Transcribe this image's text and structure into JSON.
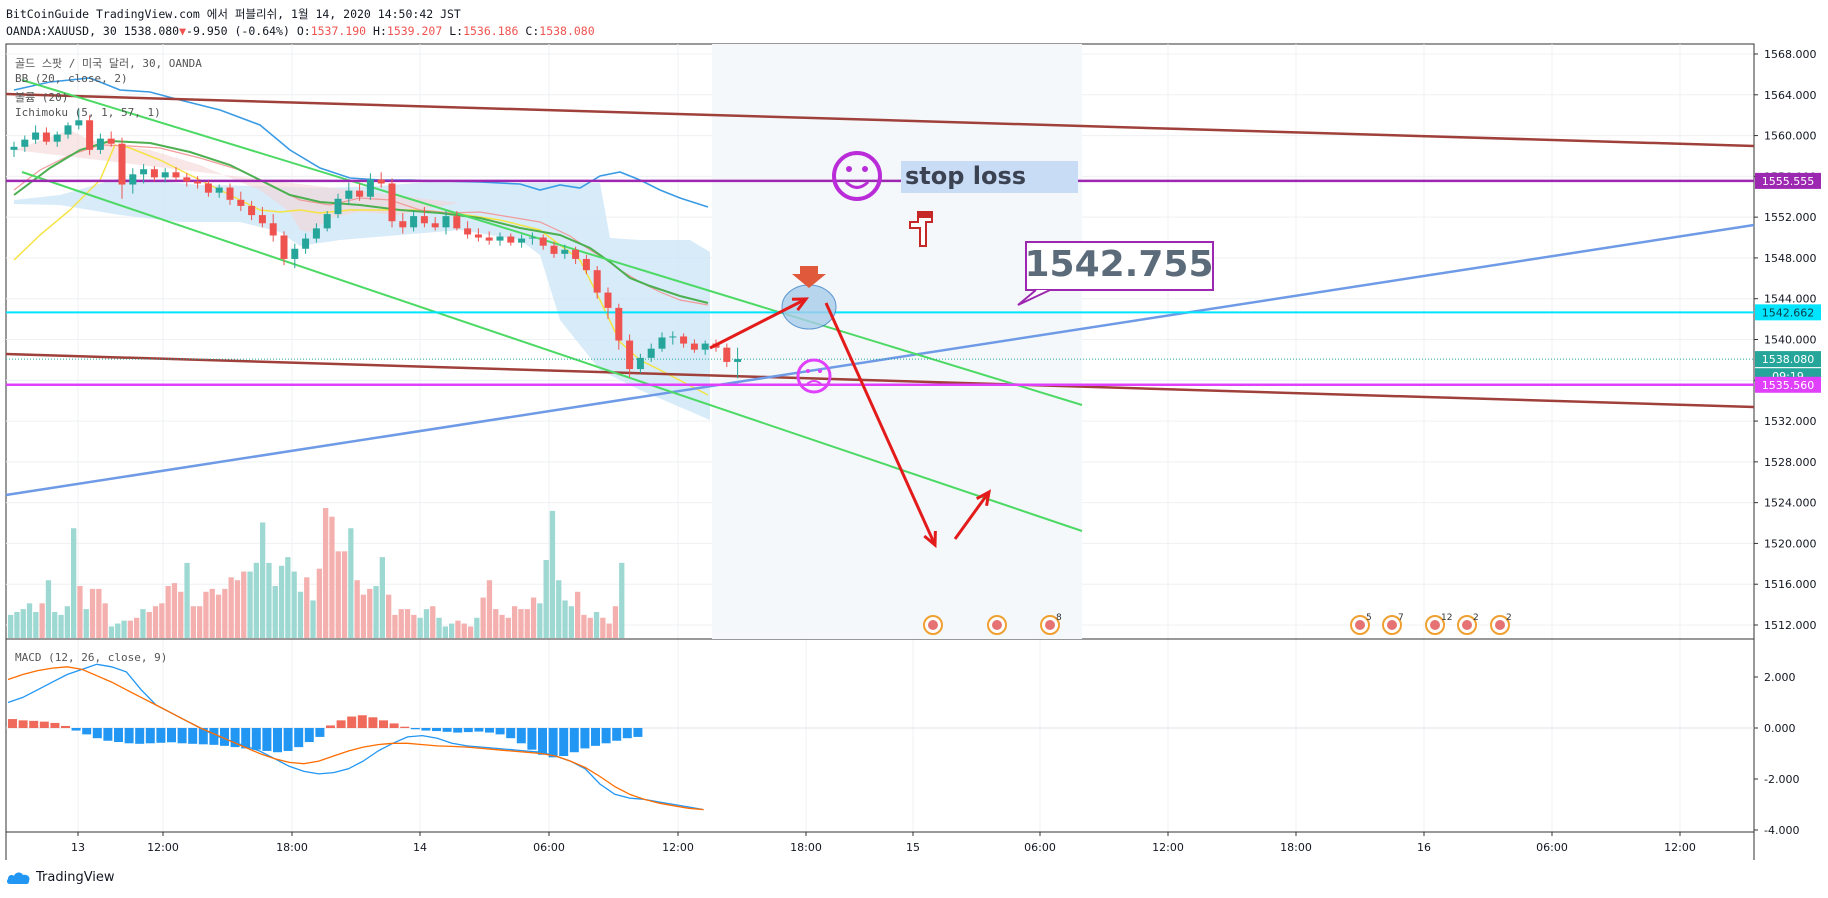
{
  "header": {
    "line1": "BitCoinGuide TradingView.com 에서 퍼블리쉬, 1월 14, 2020 14:50:42 JST",
    "symbol": "OANDA:XAUUSD, 30",
    "price": "1538.080",
    "change": "-9.950 (-0.64%)",
    "o_label": "O:",
    "o": "1537.190",
    "h_label": "H:",
    "h": "1539.207",
    "l_label": "L:",
    "l": "1536.186",
    "c_label": "C:",
    "c": "1538.080"
  },
  "legend": {
    "title": "골드 스팟 / 미국 달러, 30, OANDA",
    "bb": "BB (20, close, 2)",
    "vol": "볼륨 (20)",
    "ichimoku": "Ichimoku (5, 1, 57, 1)",
    "macd": "MACD (12, 26, close, 9)"
  },
  "annotations": {
    "stop_loss": "stop loss",
    "target_price": "1542.755"
  },
  "price_axis": {
    "ticks": [
      "1568.000",
      "1564.000",
      "1560.000",
      "1556.000",
      "1552.000",
      "1548.000",
      "1544.000",
      "1540.000",
      "1536.000",
      "1532.000",
      "1528.000",
      "1524.000",
      "1520.000",
      "1516.000",
      "1512.000"
    ],
    "tags": [
      {
        "text": "1555.555",
        "color": "#9c27b0",
        "value": 1555.555
      },
      {
        "text": "1542.662",
        "color": "#00e5ff",
        "value": 1542.662
      },
      {
        "text": "1538.080",
        "color": "#26a69a",
        "value": 1538.08
      },
      {
        "text": "09:19",
        "color": "#26a69a",
        "value": 1536.4
      },
      {
        "text": "1535.560",
        "color": "#e040fb",
        "value": 1535.56
      }
    ]
  },
  "macd_axis": {
    "ticks": [
      "2.000",
      "0.000",
      "-2.000",
      "-4.000"
    ]
  },
  "time_axis": {
    "ticks": [
      "13",
      "12:00",
      "18:00",
      "14",
      "06:00",
      "12:00",
      "18:00",
      "15",
      "06:00",
      "12:00",
      "18:00",
      "16",
      "06:00",
      "12:00"
    ]
  },
  "event_badges": [
    "",
    "",
    "8",
    "5",
    "7",
    "12",
    "2",
    "2"
  ],
  "footer": {
    "brand": "TradingView"
  },
  "colors": {
    "up": "#26a69a",
    "down": "#ef5350",
    "stop_loss_line": "#9c27b0",
    "entry_line": "#00e5ff",
    "support_line": "#e040fb",
    "channel": "#4cd964",
    "trend_brown": "#a0403a",
    "trend_blue": "#6f9ae6"
  },
  "chart_data": {
    "type": "candlestick",
    "ylim": [
      1510,
      1568
    ],
    "candles": [
      {
        "o": 1558.6,
        "h": 1559.4,
        "l": 1557.9,
        "c": 1558.9
      },
      {
        "o": 1558.9,
        "h": 1560.0,
        "l": 1558.4,
        "c": 1559.6
      },
      {
        "o": 1559.6,
        "h": 1561.0,
        "l": 1559.2,
        "c": 1560.3
      },
      {
        "o": 1560.3,
        "h": 1560.8,
        "l": 1559.1,
        "c": 1559.4
      },
      {
        "o": 1559.4,
        "h": 1560.4,
        "l": 1558.9,
        "c": 1560.1
      },
      {
        "o": 1560.1,
        "h": 1561.3,
        "l": 1559.7,
        "c": 1561.0
      },
      {
        "o": 1561.0,
        "h": 1562.6,
        "l": 1560.6,
        "c": 1561.5
      },
      {
        "o": 1561.5,
        "h": 1562.0,
        "l": 1558.1,
        "c": 1558.6
      },
      {
        "o": 1558.6,
        "h": 1560.2,
        "l": 1558.2,
        "c": 1559.7
      },
      {
        "o": 1559.7,
        "h": 1560.4,
        "l": 1558.9,
        "c": 1559.2
      },
      {
        "o": 1559.2,
        "h": 1559.8,
        "l": 1553.8,
        "c": 1555.2
      },
      {
        "o": 1555.2,
        "h": 1556.8,
        "l": 1554.3,
        "c": 1556.2
      },
      {
        "o": 1556.2,
        "h": 1557.2,
        "l": 1555.3,
        "c": 1556.7
      },
      {
        "o": 1556.7,
        "h": 1557.0,
        "l": 1555.5,
        "c": 1555.9
      },
      {
        "o": 1555.9,
        "h": 1556.8,
        "l": 1555.4,
        "c": 1556.4
      },
      {
        "o": 1556.4,
        "h": 1556.9,
        "l": 1555.6,
        "c": 1555.9
      },
      {
        "o": 1555.9,
        "h": 1556.3,
        "l": 1555.0,
        "c": 1555.5
      },
      {
        "o": 1555.5,
        "h": 1556.0,
        "l": 1554.8,
        "c": 1555.3
      },
      {
        "o": 1555.3,
        "h": 1555.6,
        "l": 1554.0,
        "c": 1554.4
      },
      {
        "o": 1554.4,
        "h": 1555.2,
        "l": 1553.9,
        "c": 1554.9
      },
      {
        "o": 1554.9,
        "h": 1555.3,
        "l": 1553.2,
        "c": 1553.7
      },
      {
        "o": 1553.7,
        "h": 1554.5,
        "l": 1552.6,
        "c": 1553.1
      },
      {
        "o": 1553.1,
        "h": 1553.6,
        "l": 1551.7,
        "c": 1552.2
      },
      {
        "o": 1552.2,
        "h": 1553.0,
        "l": 1551.0,
        "c": 1551.4
      },
      {
        "o": 1551.4,
        "h": 1552.3,
        "l": 1549.6,
        "c": 1550.2
      },
      {
        "o": 1550.2,
        "h": 1550.6,
        "l": 1547.3,
        "c": 1547.9
      },
      {
        "o": 1547.9,
        "h": 1549.4,
        "l": 1547.0,
        "c": 1548.9
      },
      {
        "o": 1548.9,
        "h": 1550.4,
        "l": 1548.4,
        "c": 1549.9
      },
      {
        "o": 1549.9,
        "h": 1551.4,
        "l": 1549.5,
        "c": 1550.9
      },
      {
        "o": 1550.9,
        "h": 1552.6,
        "l": 1550.6,
        "c": 1552.3
      },
      {
        "o": 1552.3,
        "h": 1554.3,
        "l": 1551.9,
        "c": 1553.8
      },
      {
        "o": 1553.8,
        "h": 1555.4,
        "l": 1553.2,
        "c": 1554.6
      },
      {
        "o": 1554.6,
        "h": 1555.3,
        "l": 1553.6,
        "c": 1554.0
      },
      {
        "o": 1554.0,
        "h": 1556.3,
        "l": 1553.7,
        "c": 1555.7
      },
      {
        "o": 1555.7,
        "h": 1556.4,
        "l": 1554.9,
        "c": 1555.3
      },
      {
        "o": 1555.3,
        "h": 1555.8,
        "l": 1551.0,
        "c": 1551.6
      },
      {
        "o": 1551.6,
        "h": 1552.4,
        "l": 1550.4,
        "c": 1551.0
      },
      {
        "o": 1551.0,
        "h": 1552.7,
        "l": 1550.6,
        "c": 1552.1
      },
      {
        "o": 1552.1,
        "h": 1553.0,
        "l": 1551.0,
        "c": 1551.4
      },
      {
        "o": 1551.4,
        "h": 1552.0,
        "l": 1550.7,
        "c": 1551.0
      },
      {
        "o": 1551.0,
        "h": 1552.6,
        "l": 1550.3,
        "c": 1552.1
      },
      {
        "o": 1552.1,
        "h": 1552.6,
        "l": 1550.7,
        "c": 1550.9
      },
      {
        "o": 1550.9,
        "h": 1551.6,
        "l": 1549.9,
        "c": 1550.3
      },
      {
        "o": 1550.3,
        "h": 1550.9,
        "l": 1549.6,
        "c": 1550.0
      },
      {
        "o": 1550.0,
        "h": 1550.6,
        "l": 1549.3,
        "c": 1549.7
      },
      {
        "o": 1549.7,
        "h": 1550.5,
        "l": 1549.2,
        "c": 1550.1
      },
      {
        "o": 1550.1,
        "h": 1550.4,
        "l": 1549.2,
        "c": 1549.5
      },
      {
        "o": 1549.5,
        "h": 1550.3,
        "l": 1549.0,
        "c": 1549.9
      },
      {
        "o": 1549.9,
        "h": 1550.5,
        "l": 1549.3,
        "c": 1550.0
      },
      {
        "o": 1550.0,
        "h": 1550.3,
        "l": 1548.8,
        "c": 1549.2
      },
      {
        "o": 1549.2,
        "h": 1549.6,
        "l": 1548.0,
        "c": 1548.4
      },
      {
        "o": 1548.4,
        "h": 1549.3,
        "l": 1547.9,
        "c": 1548.8
      },
      {
        "o": 1548.8,
        "h": 1549.1,
        "l": 1547.4,
        "c": 1547.9
      },
      {
        "o": 1547.9,
        "h": 1548.3,
        "l": 1546.4,
        "c": 1546.8
      },
      {
        "o": 1546.8,
        "h": 1547.2,
        "l": 1544.0,
        "c": 1544.6
      },
      {
        "o": 1544.6,
        "h": 1545.1,
        "l": 1542.0,
        "c": 1543.1
      },
      {
        "o": 1543.1,
        "h": 1543.5,
        "l": 1539.0,
        "c": 1539.9
      },
      {
        "o": 1539.9,
        "h": 1540.5,
        "l": 1536.3,
        "c": 1537.1
      },
      {
        "o": 1537.1,
        "h": 1538.6,
        "l": 1536.7,
        "c": 1538.2
      },
      {
        "o": 1538.2,
        "h": 1539.6,
        "l": 1537.8,
        "c": 1539.1
      },
      {
        "o": 1539.1,
        "h": 1540.7,
        "l": 1538.8,
        "c": 1540.2
      },
      {
        "o": 1540.2,
        "h": 1540.8,
        "l": 1539.5,
        "c": 1540.3
      },
      {
        "o": 1540.3,
        "h": 1540.6,
        "l": 1539.2,
        "c": 1539.6
      },
      {
        "o": 1539.6,
        "h": 1540.0,
        "l": 1538.7,
        "c": 1539.0
      },
      {
        "o": 1539.0,
        "h": 1539.9,
        "l": 1538.5,
        "c": 1539.6
      },
      {
        "o": 1539.6,
        "h": 1540.0,
        "l": 1538.8,
        "c": 1539.2
      },
      {
        "o": 1539.2,
        "h": 1539.6,
        "l": 1537.3,
        "c": 1537.8
      },
      {
        "o": 1537.8,
        "h": 1539.2,
        "l": 1536.2,
        "c": 1538.08
      }
    ],
    "volume": [
      8,
      9,
      10,
      12,
      9,
      12,
      20,
      9,
      8,
      11,
      38,
      18,
      10,
      17,
      17,
      12,
      4,
      5,
      6,
      6,
      7,
      10,
      9,
      11,
      12,
      18,
      19,
      16,
      26,
      11,
      11,
      16,
      17,
      15,
      17,
      21,
      20,
      23,
      23,
      26,
      40,
      26,
      18,
      25,
      28,
      23,
      16,
      21,
      13,
      24,
      45,
      42,
      30,
      30,
      38,
      20,
      15,
      17,
      18,
      28,
      15,
      8,
      10,
      10,
      8,
      7,
      10,
      11,
      7,
      4,
      5,
      6,
      5,
      4,
      7,
      14,
      20,
      10,
      8,
      7,
      11,
      10,
      10,
      14,
      12,
      27,
      44,
      20,
      13,
      11,
      16,
      8,
      7,
      9,
      7,
      5,
      11,
      26
    ],
    "macd_hist": [
      0.35,
      0.3,
      0.28,
      0.25,
      0.2,
      0.08,
      -0.1,
      -0.25,
      -0.4,
      -0.5,
      -0.55,
      -0.6,
      -0.62,
      -0.6,
      -0.58,
      -0.56,
      -0.6,
      -0.62,
      -0.64,
      -0.66,
      -0.7,
      -0.75,
      -0.8,
      -0.85,
      -0.9,
      -0.95,
      -0.9,
      -0.75,
      -0.55,
      -0.35,
      0.1,
      0.3,
      0.45,
      0.5,
      0.42,
      0.3,
      0.18,
      0.05,
      -0.05,
      -0.1,
      -0.12,
      -0.15,
      -0.18,
      -0.16,
      -0.14,
      -0.18,
      -0.25,
      -0.4,
      -0.6,
      -0.85,
      -1.05,
      -1.15,
      -1.1,
      -0.95,
      -0.8,
      -0.7,
      -0.6,
      -0.5,
      -0.4,
      -0.35
    ],
    "macd_line": [
      1.0,
      1.2,
      1.5,
      1.8,
      2.1,
      2.3,
      2.5,
      2.4,
      2.2,
      1.5,
      0.9,
      0.6,
      0.3,
      0.0,
      -0.3,
      -0.5,
      -0.7,
      -0.9,
      -1.2,
      -1.5,
      -1.7,
      -1.8,
      -1.75,
      -1.6,
      -1.3,
      -0.9,
      -0.6,
      -0.35,
      -0.3,
      -0.4,
      -0.6,
      -0.7,
      -0.75,
      -0.8,
      -0.85,
      -0.9,
      -0.95,
      -1.1,
      -1.3,
      -1.6,
      -2.2,
      -2.6,
      -2.75,
      -2.8,
      -2.9,
      -3.0,
      -3.1,
      -3.2
    ],
    "signal_line": [
      1.9,
      2.1,
      2.25,
      2.35,
      2.4,
      2.3,
      2.05,
      1.8,
      1.5,
      1.2,
      0.9,
      0.6,
      0.3,
      0.0,
      -0.25,
      -0.5,
      -0.75,
      -1.0,
      -1.2,
      -1.35,
      -1.4,
      -1.3,
      -1.1,
      -0.9,
      -0.75,
      -0.65,
      -0.6,
      -0.6,
      -0.65,
      -0.7,
      -0.72,
      -0.75,
      -0.8,
      -0.85,
      -0.9,
      -0.95,
      -1.0,
      -1.1,
      -1.3,
      -1.55,
      -1.9,
      -2.3,
      -2.6,
      -2.8,
      -2.95,
      -3.05,
      -3.15,
      -3.2
    ],
    "macd_ylim": [
      -4.2,
      3.3
    ]
  }
}
